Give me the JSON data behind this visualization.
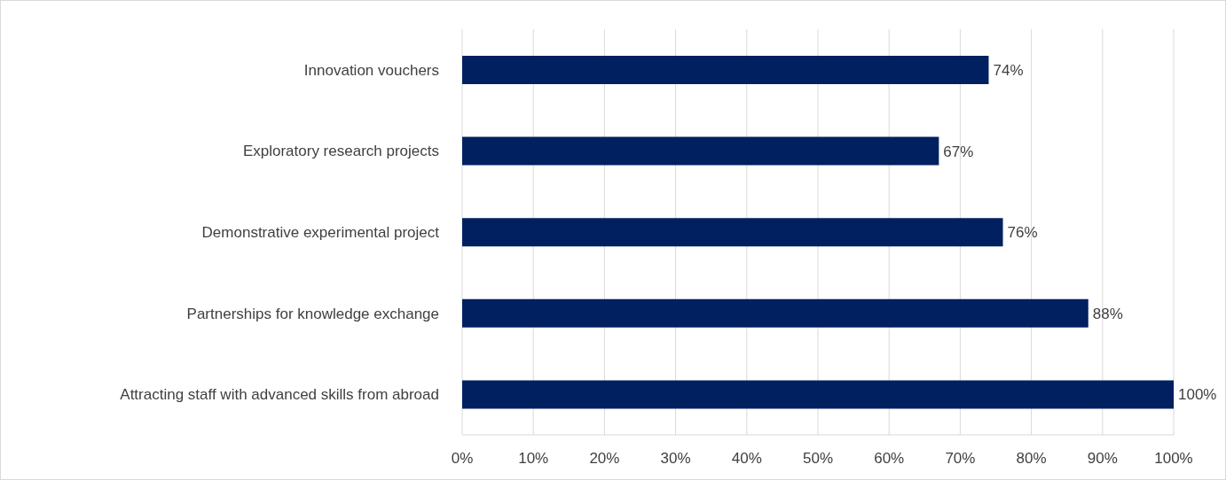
{
  "chart_data": {
    "type": "bar",
    "orientation": "horizontal",
    "categories": [
      "Innovation vouchers",
      "Exploratory research projects",
      "Demonstrative experimental project",
      "Partnerships for knowledge exchange",
      "Attracting staff with advanced skills from abroad"
    ],
    "values": [
      74,
      67,
      76,
      88,
      100
    ],
    "value_labels": [
      "74%",
      "67%",
      "76%",
      "88%",
      "100%"
    ],
    "color": "#002060",
    "xlim": [
      0,
      100
    ],
    "xticks": [
      {
        "value": 0,
        "label": "0%"
      },
      {
        "value": 10,
        "label": "10%"
      },
      {
        "value": 20,
        "label": "20%"
      },
      {
        "value": 30,
        "label": "30%"
      },
      {
        "value": 40,
        "label": "40%"
      },
      {
        "value": 50,
        "label": "50%"
      },
      {
        "value": 60,
        "label": "60%"
      },
      {
        "value": 70,
        "label": "70%"
      },
      {
        "value": 80,
        "label": "80%"
      },
      {
        "value": 90,
        "label": "90%"
      },
      {
        "value": 100,
        "label": "100%"
      }
    ],
    "grid": "x"
  }
}
